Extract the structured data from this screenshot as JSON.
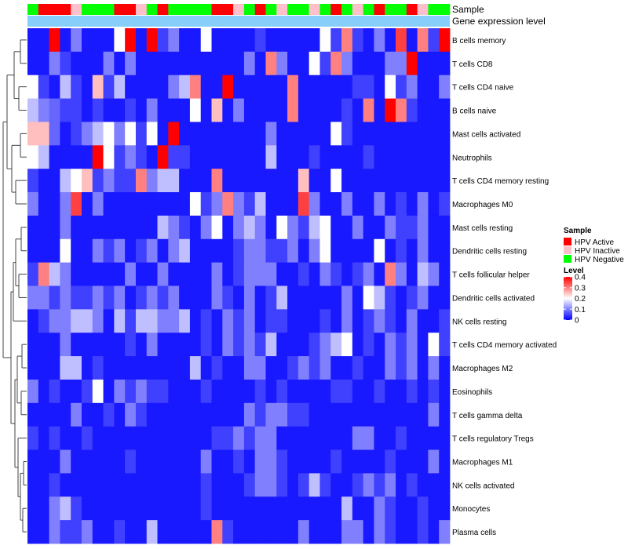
{
  "chart_data": {
    "type": "heatmap",
    "annotation_labels": [
      "Sample",
      "Gene expression level"
    ],
    "rows": [
      "B cells memory",
      "T cells CD8",
      "T cells CD4 naive",
      "B cells naive",
      "Mast cells activated",
      "Neutrophils",
      "T cells CD4 memory resting",
      "Macrophages M0",
      "Mast cells resting",
      "Dendritic cells resting",
      "T cells follicular helper",
      "Dendritic cells activated",
      "NK cells resting",
      "T cells CD4 memory activated",
      "Macrophages M2",
      "Eosinophils",
      "T cells gamma delta",
      "T cells regulatory  Tregs",
      "Macrophages M1",
      "NK cells activated",
      "Monocytes",
      "Plasma cells"
    ],
    "sample_groups": [
      "Neg",
      "Act",
      "Act",
      "Act",
      "Inact",
      "Neg",
      "Neg",
      "Neg",
      "Act",
      "Act",
      "Inact",
      "Neg",
      "Act",
      "Neg",
      "Neg",
      "Neg",
      "Neg",
      "Act",
      "Act",
      "Inact",
      "Neg",
      "Act",
      "Neg",
      "Inact",
      "Neg",
      "Neg",
      "Inact",
      "Neg",
      "Act",
      "Neg",
      "Inact",
      "Neg",
      "Act",
      "Neg",
      "Neg",
      "Act",
      "Inact",
      "Neg",
      "Neg"
    ],
    "values": [
      [
        0.02,
        0.02,
        0.4,
        0.02,
        0.1,
        0.02,
        0.02,
        0.02,
        0.2,
        0.4,
        0.02,
        0.4,
        0.05,
        0.1,
        0.02,
        0.02,
        0.2,
        0.02,
        0.02,
        0.02,
        0.02,
        0.05,
        0.02,
        0.02,
        0.02,
        0.02,
        0.02,
        0.2,
        0.05,
        0.3,
        0.05,
        0.02,
        0.1,
        0.02,
        0.35,
        0.02,
        0.3,
        0.05,
        0.4
      ],
      [
        0.02,
        0.02,
        0.1,
        0.05,
        0.02,
        0.02,
        0.02,
        0.1,
        0.02,
        0.1,
        0.02,
        0.02,
        0.02,
        0.02,
        0.02,
        0.02,
        0.02,
        0.02,
        0.02,
        0.02,
        0.1,
        0.02,
        0.3,
        0.1,
        0.02,
        0.02,
        0.2,
        0.05,
        0.3,
        0.1,
        0.02,
        0.02,
        0.02,
        0.1,
        0.1,
        0.4,
        0.02,
        0.02,
        0.02
      ],
      [
        0.2,
        0.05,
        0.02,
        0.15,
        0.05,
        0.02,
        0.25,
        0.05,
        0.15,
        0.02,
        0.02,
        0.02,
        0.02,
        0.1,
        0.15,
        0.3,
        0.02,
        0.02,
        0.4,
        0.02,
        0.02,
        0.02,
        0.02,
        0.02,
        0.3,
        0.02,
        0.02,
        0.02,
        0.02,
        0.02,
        0.05,
        0.05,
        0.02,
        0.2,
        0.05,
        0.1,
        0.02,
        0.02,
        0.1
      ],
      [
        0.15,
        0.1,
        0.08,
        0.05,
        0.05,
        0.02,
        0.05,
        0.02,
        0.02,
        0.05,
        0.02,
        0.1,
        0.02,
        0.02,
        0.02,
        0.2,
        0.02,
        0.25,
        0.02,
        0.1,
        0.02,
        0.02,
        0.02,
        0.02,
        0.3,
        0.02,
        0.02,
        0.02,
        0.02,
        0.05,
        0.02,
        0.3,
        0.02,
        0.4,
        0.3,
        0.05,
        0.02,
        0.02,
        0.02
      ],
      [
        0.25,
        0.25,
        0.08,
        0.02,
        0.05,
        0.1,
        0.15,
        0.2,
        0.1,
        0.2,
        0.05,
        0.2,
        0.02,
        0.4,
        0.02,
        0.02,
        0.02,
        0.02,
        0.02,
        0.02,
        0.02,
        0.02,
        0.1,
        0.02,
        0.02,
        0.02,
        0.02,
        0.02,
        0.2,
        0.05,
        0.02,
        0.02,
        0.02,
        0.02,
        0.02,
        0.02,
        0.02,
        0.02,
        0.02
      ],
      [
        0.2,
        0.15,
        0.02,
        0.02,
        0.02,
        0.02,
        0.4,
        0.2,
        0.05,
        0.1,
        0.05,
        0.02,
        0.4,
        0.05,
        0.05,
        0.02,
        0.02,
        0.02,
        0.02,
        0.02,
        0.02,
        0.02,
        0.15,
        0.02,
        0.02,
        0.02,
        0.05,
        0.02,
        0.02,
        0.02,
        0.02,
        0.05,
        0.02,
        0.02,
        0.02,
        0.02,
        0.02,
        0.02,
        0.02
      ],
      [
        0.05,
        0.02,
        0.02,
        0.15,
        0.2,
        0.25,
        0.05,
        0.1,
        0.05,
        0.05,
        0.3,
        0.1,
        0.15,
        0.15,
        0.02,
        0.02,
        0.02,
        0.3,
        0.02,
        0.02,
        0.02,
        0.02,
        0.02,
        0.02,
        0.02,
        0.25,
        0.02,
        0.02,
        0.2,
        0.02,
        0.02,
        0.02,
        0.02,
        0.02,
        0.02,
        0.02,
        0.02,
        0.02,
        0.02
      ],
      [
        0.1,
        0.02,
        0.02,
        0.1,
        0.35,
        0.02,
        0.1,
        0.02,
        0.02,
        0.02,
        0.02,
        0.02,
        0.02,
        0.02,
        0.02,
        0.2,
        0.05,
        0.1,
        0.3,
        0.1,
        0.05,
        0.15,
        0.02,
        0.02,
        0.02,
        0.35,
        0.1,
        0.02,
        0.02,
        0.1,
        0.02,
        0.02,
        0.1,
        0.02,
        0.05,
        0.02,
        0.1,
        0.02,
        0.05
      ],
      [
        0.02,
        0.02,
        0.02,
        0.1,
        0.02,
        0.02,
        0.02,
        0.02,
        0.02,
        0.02,
        0.02,
        0.02,
        0.15,
        0.1,
        0.05,
        0.02,
        0.1,
        0.2,
        0.02,
        0.1,
        0.15,
        0.1,
        0.02,
        0.2,
        0.1,
        0.05,
        0.15,
        0.2,
        0.02,
        0.02,
        0.1,
        0.02,
        0.02,
        0.1,
        0.05,
        0.05,
        0.1,
        0.02,
        0.02
      ],
      [
        0.02,
        0.02,
        0.02,
        0.2,
        0.02,
        0.02,
        0.1,
        0.05,
        0.1,
        0.02,
        0.05,
        0.1,
        0.02,
        0.1,
        0.15,
        0.02,
        0.02,
        0.02,
        0.02,
        0.05,
        0.1,
        0.1,
        0.05,
        0.05,
        0.1,
        0.02,
        0.1,
        0.2,
        0.02,
        0.02,
        0.02,
        0.02,
        0.2,
        0.02,
        0.05,
        0.02,
        0.1,
        0.02,
        0.02
      ],
      [
        0.05,
        0.3,
        0.15,
        0.1,
        0.02,
        0.02,
        0.02,
        0.02,
        0.02,
        0.1,
        0.02,
        0.02,
        0.1,
        0.02,
        0.02,
        0.02,
        0.02,
        0.1,
        0.02,
        0.05,
        0.1,
        0.1,
        0.1,
        0.02,
        0.02,
        0.05,
        0.02,
        0.1,
        0.05,
        0.02,
        0.05,
        0.1,
        0.02,
        0.3,
        0.1,
        0.02,
        0.15,
        0.1,
        0.02
      ],
      [
        0.1,
        0.1,
        0.05,
        0.1,
        0.05,
        0.05,
        0.1,
        0.05,
        0.1,
        0.02,
        0.05,
        0.1,
        0.05,
        0.1,
        0.02,
        0.02,
        0.02,
        0.1,
        0.05,
        0.02,
        0.1,
        0.02,
        0.05,
        0.15,
        0.02,
        0.02,
        0.02,
        0.02,
        0.02,
        0.1,
        0.02,
        0.2,
        0.15,
        0.05,
        0.02,
        0.05,
        0.1,
        0.02,
        0.02
      ],
      [
        0.02,
        0.05,
        0.1,
        0.1,
        0.15,
        0.15,
        0.1,
        0.02,
        0.15,
        0.05,
        0.15,
        0.15,
        0.1,
        0.1,
        0.15,
        0.02,
        0.05,
        0.02,
        0.1,
        0.05,
        0.1,
        0.02,
        0.05,
        0.05,
        0.02,
        0.02,
        0.02,
        0.05,
        0.02,
        0.1,
        0.02,
        0.05,
        0.1,
        0.05,
        0.02,
        0.1,
        0.02,
        0.02,
        0.05
      ],
      [
        0.02,
        0.02,
        0.02,
        0.1,
        0.02,
        0.02,
        0.02,
        0.02,
        0.02,
        0.05,
        0.02,
        0.1,
        0.02,
        0.02,
        0.02,
        0.02,
        0.05,
        0.02,
        0.1,
        0.05,
        0.1,
        0.05,
        0.15,
        0.02,
        0.02,
        0.02,
        0.05,
        0.1,
        0.15,
        0.2,
        0.02,
        0.05,
        0.02,
        0.1,
        0.05,
        0.1,
        0.02,
        0.2,
        0.05
      ],
      [
        0.02,
        0.02,
        0.02,
        0.15,
        0.15,
        0.02,
        0.05,
        0.02,
        0.02,
        0.02,
        0.02,
        0.02,
        0.02,
        0.02,
        0.02,
        0.15,
        0.02,
        0.05,
        0.02,
        0.02,
        0.1,
        0.1,
        0.02,
        0.02,
        0.05,
        0.1,
        0.05,
        0.1,
        0.02,
        0.02,
        0.05,
        0.02,
        0.02,
        0.1,
        0.05,
        0.1,
        0.02,
        0.1,
        0.02
      ],
      [
        0.1,
        0.02,
        0.05,
        0.02,
        0.02,
        0.05,
        0.2,
        0.02,
        0.1,
        0.05,
        0.1,
        0.05,
        0.05,
        0.02,
        0.02,
        0.02,
        0.05,
        0.02,
        0.02,
        0.02,
        0.02,
        0.05,
        0.02,
        0.05,
        0.02,
        0.02,
        0.02,
        0.02,
        0.05,
        0.05,
        0.02,
        0.02,
        0.05,
        0.02,
        0.02,
        0.05,
        0.02,
        0.05,
        0.02
      ],
      [
        0.02,
        0.02,
        0.02,
        0.02,
        0.1,
        0.02,
        0.02,
        0.05,
        0.02,
        0.1,
        0.05,
        0.02,
        0.02,
        0.02,
        0.02,
        0.02,
        0.02,
        0.02,
        0.02,
        0.02,
        0.1,
        0.05,
        0.1,
        0.1,
        0.05,
        0.05,
        0.02,
        0.02,
        0.02,
        0.02,
        0.02,
        0.02,
        0.02,
        0.02,
        0.02,
        0.02,
        0.02,
        0.1,
        0.02
      ],
      [
        0.05,
        0.02,
        0.05,
        0.02,
        0.02,
        0.05,
        0.02,
        0.02,
        0.02,
        0.02,
        0.02,
        0.02,
        0.02,
        0.02,
        0.02,
        0.02,
        0.02,
        0.05,
        0.05,
        0.1,
        0.05,
        0.1,
        0.1,
        0.02,
        0.02,
        0.02,
        0.02,
        0.02,
        0.02,
        0.02,
        0.1,
        0.1,
        0.02,
        0.02,
        0.05,
        0.02,
        0.02,
        0.02,
        0.02
      ],
      [
        0.02,
        0.02,
        0.02,
        0.1,
        0.02,
        0.02,
        0.02,
        0.02,
        0.02,
        0.05,
        0.02,
        0.02,
        0.02,
        0.02,
        0.02,
        0.02,
        0.1,
        0.02,
        0.02,
        0.05,
        0.02,
        0.1,
        0.1,
        0.05,
        0.02,
        0.02,
        0.02,
        0.02,
        0.05,
        0.02,
        0.02,
        0.02,
        0.02,
        0.05,
        0.02,
        0.02,
        0.02,
        0.1,
        0.02
      ],
      [
        0.02,
        0.02,
        0.05,
        0.02,
        0.02,
        0.02,
        0.02,
        0.02,
        0.02,
        0.02,
        0.02,
        0.02,
        0.02,
        0.02,
        0.02,
        0.02,
        0.05,
        0.02,
        0.02,
        0.02,
        0.05,
        0.1,
        0.1,
        0.05,
        0.02,
        0.05,
        0.15,
        0.05,
        0.02,
        0.02,
        0.05,
        0.1,
        0.05,
        0.1,
        0.02,
        0.05,
        0.02,
        0.02,
        0.02
      ],
      [
        0.02,
        0.02,
        0.1,
        0.15,
        0.05,
        0.02,
        0.02,
        0.02,
        0.02,
        0.02,
        0.02,
        0.02,
        0.02,
        0.02,
        0.02,
        0.02,
        0.05,
        0.02,
        0.02,
        0.02,
        0.02,
        0.02,
        0.02,
        0.02,
        0.02,
        0.02,
        0.02,
        0.02,
        0.02,
        0.15,
        0.02,
        0.02,
        0.1,
        0.05,
        0.02,
        0.02,
        0.05,
        0.02,
        0.02
      ],
      [
        0.02,
        0.02,
        0.1,
        0.05,
        0.05,
        0.1,
        0.02,
        0.02,
        0.05,
        0.02,
        0.02,
        0.15,
        0.02,
        0.02,
        0.02,
        0.02,
        0.02,
        0.3,
        0.05,
        0.02,
        0.02,
        0.02,
        0.02,
        0.02,
        0.02,
        0.1,
        0.02,
        0.02,
        0.02,
        0.1,
        0.1,
        0.02,
        0.1,
        0.05,
        0.02,
        0.02,
        0.05,
        0.02,
        0.1
      ]
    ],
    "legend": {
      "sample_title": "Sample",
      "groups": [
        {
          "key": "Act",
          "label": "HPV Active",
          "color": "#ff0000"
        },
        {
          "key": "Inact",
          "label": "HPV Inactive",
          "color": "#ffc0cb"
        },
        {
          "key": "Neg",
          "label": "HPV Negative",
          "color": "#00ff00"
        }
      ],
      "level_title": "Level",
      "level_ticks": [
        "0.4",
        "0.3",
        "0.2",
        "0.1",
        "0"
      ],
      "level_tick_values": [
        0.4,
        0.3,
        0.2,
        0.1,
        0
      ],
      "level_range": [
        0,
        0.4
      ]
    },
    "colors": {
      "low": "#0000ff",
      "mid": "#ffffff",
      "high": "#ff0000",
      "expression_bar": "#87cefa"
    }
  }
}
